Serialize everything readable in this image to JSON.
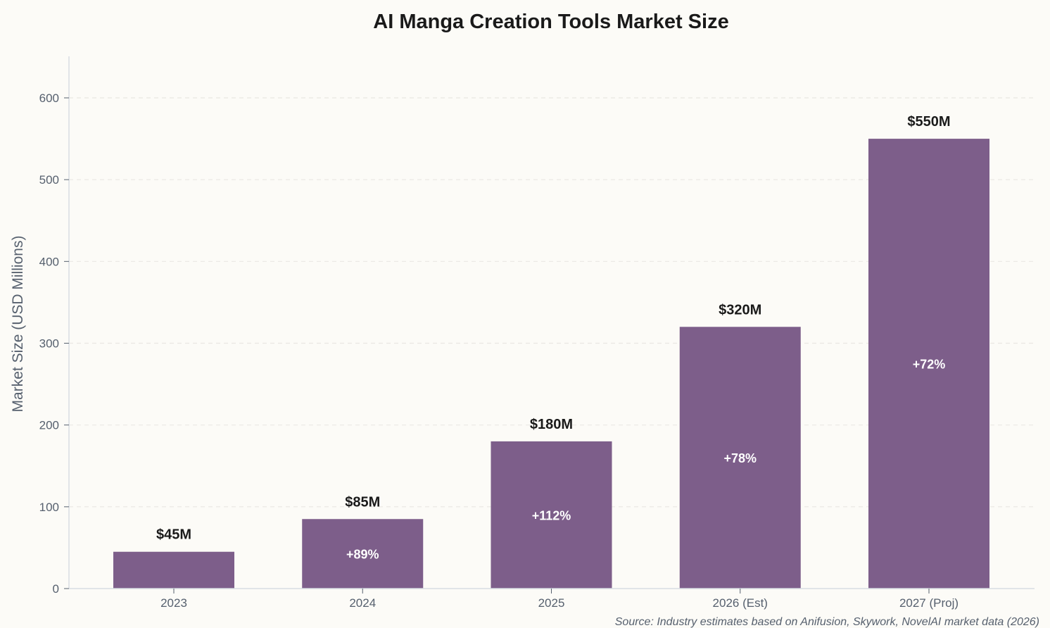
{
  "chart_data": {
    "type": "bar",
    "title": "AI Manga Creation Tools Market Size",
    "xlabel": "",
    "ylabel": "Market Size (USD Millions)",
    "categories": [
      "2023",
      "2024",
      "2025",
      "2026 (Est)",
      "2027 (Proj)"
    ],
    "values": [
      45,
      85,
      180,
      320,
      550
    ],
    "value_labels": [
      "$45M",
      "$85M",
      "$180M",
      "$320M",
      "$550M"
    ],
    "growth_labels": [
      "",
      "+89%",
      "+112%",
      "+78%",
      "+72%"
    ],
    "ylim": [
      0,
      650
    ],
    "yticks": [
      0,
      100,
      200,
      300,
      400,
      500,
      600
    ],
    "grid": "horizontal dashed",
    "bar_color": "#7d5e8a",
    "source": "Source: Industry estimates based on Anifusion, Skywork, NovelAI market data (2026)"
  }
}
